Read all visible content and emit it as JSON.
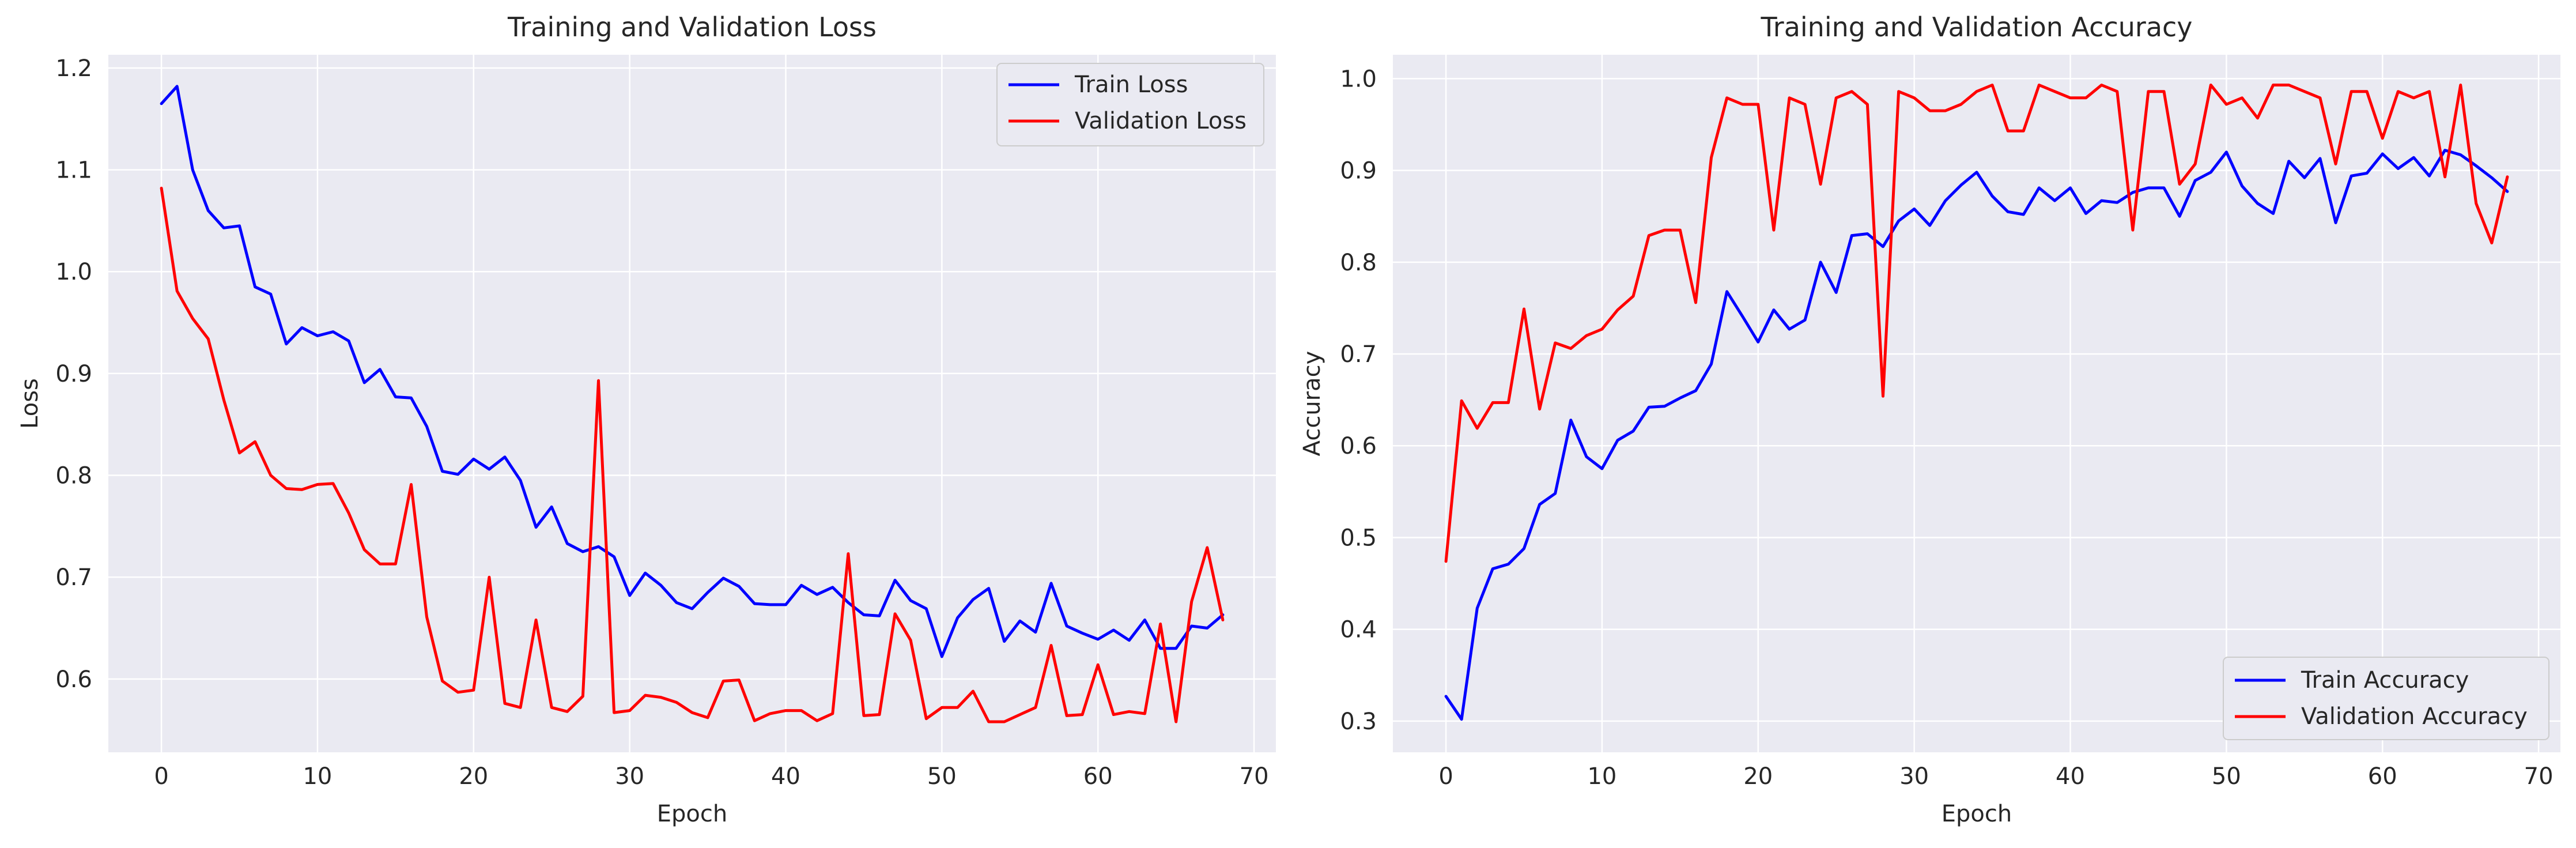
{
  "chart_data": [
    {
      "type": "line",
      "title": "Training and Validation Loss",
      "xlabel": "Epoch",
      "ylabel": "Loss",
      "xlim": [
        -3.4,
        71.4
      ],
      "ylim": [
        0.528,
        1.213
      ],
      "xticks": [
        0,
        10,
        20,
        30,
        40,
        50,
        60,
        70
      ],
      "yticks": [
        0.6,
        0.7,
        0.8,
        0.9,
        1.0,
        1.1,
        1.2
      ],
      "ytick_labels": [
        "0.6",
        "0.7",
        "0.8",
        "0.9",
        "1.0",
        "1.1",
        "1.2"
      ],
      "grid": true,
      "legend_position": "top-right",
      "series": [
        {
          "name": "Train Loss",
          "color": "#0000ff",
          "values": [
            1.165,
            1.182,
            1.1,
            1.06,
            1.043,
            1.045,
            0.985,
            0.978,
            0.929,
            0.945,
            0.937,
            0.941,
            0.932,
            0.891,
            0.904,
            0.877,
            0.876,
            0.848,
            0.804,
            0.801,
            0.816,
            0.806,
            0.818,
            0.795,
            0.749,
            0.769,
            0.733,
            0.725,
            0.73,
            0.72,
            0.682,
            0.704,
            0.692,
            0.675,
            0.669,
            0.685,
            0.699,
            0.691,
            0.674,
            0.673,
            0.673,
            0.692,
            0.683,
            0.69,
            0.675,
            0.663,
            0.662,
            0.697,
            0.677,
            0.669,
            0.622,
            0.66,
            0.678,
            0.689,
            0.637,
            0.657,
            0.646,
            0.694,
            0.652,
            0.645,
            0.639,
            0.648,
            0.638,
            0.658,
            0.63,
            0.63,
            0.652,
            0.65,
            0.663
          ]
        },
        {
          "name": "Validation Loss",
          "color": "#ff0000",
          "values": [
            1.082,
            0.981,
            0.954,
            0.934,
            0.874,
            0.822,
            0.833,
            0.8,
            0.787,
            0.786,
            0.791,
            0.792,
            0.763,
            0.727,
            0.713,
            0.713,
            0.791,
            0.661,
            0.598,
            0.587,
            0.589,
            0.7,
            0.576,
            0.572,
            0.658,
            0.572,
            0.568,
            0.583,
            0.893,
            0.567,
            0.569,
            0.584,
            0.582,
            0.577,
            0.567,
            0.562,
            0.598,
            0.599,
            0.559,
            0.566,
            0.569,
            0.569,
            0.559,
            0.566,
            0.723,
            0.564,
            0.565,
            0.664,
            0.638,
            0.561,
            0.572,
            0.572,
            0.588,
            0.558,
            0.558,
            0.565,
            0.572,
            0.633,
            0.564,
            0.565,
            0.614,
            0.565,
            0.568,
            0.566,
            0.654,
            0.558,
            0.676,
            0.729,
            0.658
          ]
        }
      ]
    },
    {
      "type": "line",
      "title": "Training and Validation Accuracy",
      "xlabel": "Epoch",
      "ylabel": "Accuracy",
      "xlim": [
        -3.4,
        71.4
      ],
      "ylim": [
        0.266,
        1.026
      ],
      "xticks": [
        0,
        10,
        20,
        30,
        40,
        50,
        60,
        70
      ],
      "yticks": [
        0.3,
        0.4,
        0.5,
        0.6,
        0.7,
        0.8,
        0.9,
        1.0
      ],
      "ytick_labels": [
        "0.3",
        "0.4",
        "0.5",
        "0.6",
        "0.7",
        "0.8",
        "0.9",
        "1.0"
      ],
      "grid": true,
      "legend_position": "bottom-right",
      "series": [
        {
          "name": "Train Accuracy",
          "color": "#0000ff",
          "values": [
            0.327,
            0.302,
            0.423,
            0.466,
            0.471,
            0.488,
            0.536,
            0.548,
            0.628,
            0.588,
            0.575,
            0.606,
            0.616,
            0.642,
            0.643,
            0.652,
            0.66,
            0.689,
            0.768,
            0.741,
            0.713,
            0.748,
            0.727,
            0.737,
            0.8,
            0.767,
            0.829,
            0.831,
            0.817,
            0.845,
            0.858,
            0.84,
            0.867,
            0.884,
            0.898,
            0.872,
            0.855,
            0.852,
            0.881,
            0.867,
            0.881,
            0.853,
            0.867,
            0.865,
            0.876,
            0.881,
            0.881,
            0.85,
            0.889,
            0.898,
            0.92,
            0.883,
            0.864,
            0.853,
            0.91,
            0.892,
            0.913,
            0.843,
            0.894,
            0.897,
            0.918,
            0.902,
            0.914,
            0.894,
            0.922,
            0.917,
            0.905,
            0.892,
            0.877
          ]
        },
        {
          "name": "Validation Accuracy",
          "color": "#ff0000",
          "values": [
            0.474,
            0.649,
            0.619,
            0.647,
            0.647,
            0.749,
            0.64,
            0.712,
            0.706,
            0.72,
            0.727,
            0.748,
            0.763,
            0.829,
            0.835,
            0.835,
            0.756,
            0.914,
            0.979,
            0.972,
            0.972,
            0.835,
            0.979,
            0.972,
            0.885,
            0.979,
            0.986,
            0.972,
            0.654,
            0.986,
            0.979,
            0.965,
            0.965,
            0.972,
            0.986,
            0.993,
            0.943,
            0.943,
            0.993,
            0.986,
            0.979,
            0.979,
            0.993,
            0.986,
            0.835,
            0.986,
            0.986,
            0.885,
            0.907,
            0.993,
            0.972,
            0.979,
            0.957,
            0.993,
            0.993,
            0.986,
            0.979,
            0.907,
            0.986,
            0.986,
            0.935,
            0.986,
            0.979,
            0.986,
            0.893,
            0.993,
            0.864,
            0.821,
            0.893
          ]
        }
      ]
    }
  ]
}
